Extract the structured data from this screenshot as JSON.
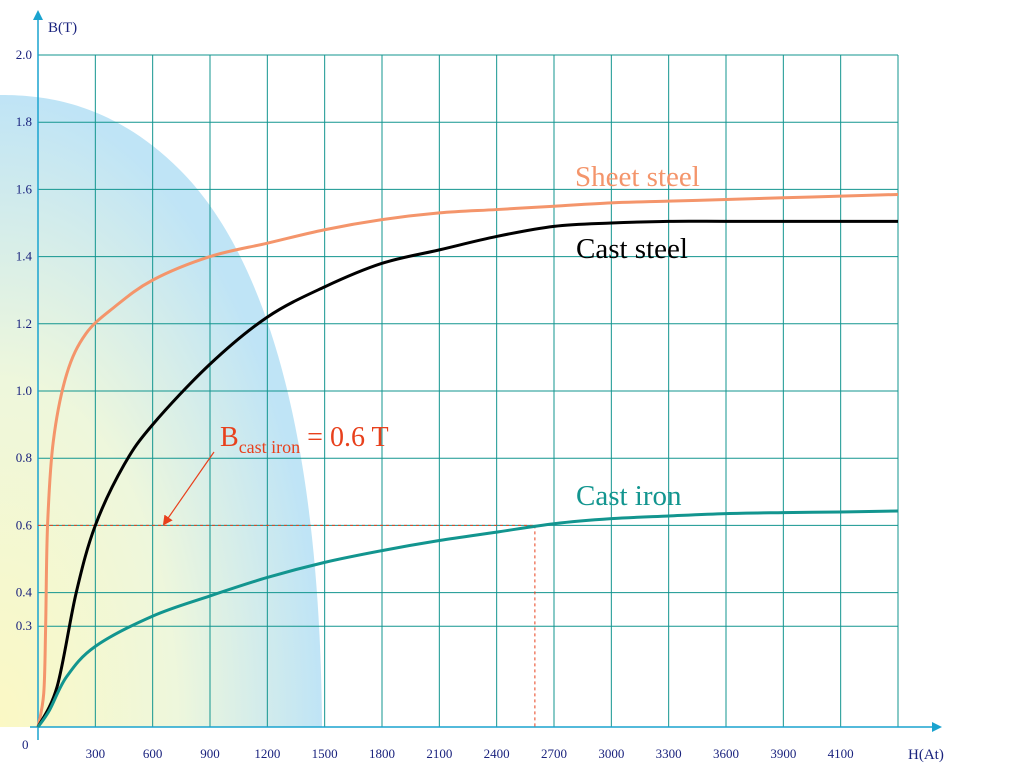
{
  "chart_data": {
    "type": "line",
    "xlabel": "H(At)",
    "ylabel": "B(T)",
    "origin_label": "0",
    "xlim": [
      0,
      4500
    ],
    "ylim": [
      0,
      2.0
    ],
    "x_ticks": [
      300,
      600,
      900,
      1200,
      1500,
      1800,
      2100,
      2400,
      2700,
      3000,
      3300,
      3600,
      3900,
      4100
    ],
    "y_ticks": [
      0.3,
      0.4,
      0.6,
      0.8,
      1.0,
      1.2,
      1.4,
      1.6,
      1.8,
      2.0
    ],
    "grid": true,
    "series": [
      {
        "name": "Sheet steel",
        "color": "#f4956b",
        "x": [
          0,
          30,
          40,
          50,
          80,
          150,
          250,
          400,
          600,
          900,
          1200,
          1500,
          1800,
          2100,
          2400,
          2700,
          3000,
          3300,
          3600,
          3900,
          4200,
          4500
        ],
        "y": [
          0,
          0.1,
          0.3,
          0.6,
          0.85,
          1.05,
          1.17,
          1.25,
          1.33,
          1.4,
          1.44,
          1.48,
          1.51,
          1.53,
          1.54,
          1.55,
          1.56,
          1.565,
          1.57,
          1.575,
          1.58,
          1.585
        ]
      },
      {
        "name": "Cast steel",
        "color": "#000000",
        "x": [
          0,
          100,
          200,
          300,
          450,
          600,
          900,
          1200,
          1500,
          1800,
          2100,
          2400,
          2700,
          3000,
          3300,
          3600,
          3900,
          4200,
          4500
        ],
        "y": [
          0,
          0.12,
          0.4,
          0.6,
          0.78,
          0.9,
          1.08,
          1.22,
          1.31,
          1.38,
          1.42,
          1.46,
          1.49,
          1.5,
          1.505,
          1.505,
          1.505,
          1.505,
          1.505
        ]
      },
      {
        "name": "Cast iron",
        "color": "#12958f",
        "x": [
          0,
          60,
          150,
          300,
          600,
          900,
          1200,
          1500,
          1800,
          2100,
          2400,
          2700,
          3000,
          3300,
          3600,
          3900,
          4200,
          4500
        ],
        "y": [
          0,
          0.05,
          0.15,
          0.24,
          0.33,
          0.39,
          0.445,
          0.49,
          0.525,
          0.555,
          0.58,
          0.605,
          0.62,
          0.628,
          0.635,
          0.638,
          0.64,
          0.643
        ]
      }
    ],
    "annotation": {
      "prefix": "B",
      "subscript": "cast iron",
      "suffix": " = 0.6 T",
      "x_value": 2600,
      "y_value": 0.6,
      "color": "#e8401c"
    }
  }
}
